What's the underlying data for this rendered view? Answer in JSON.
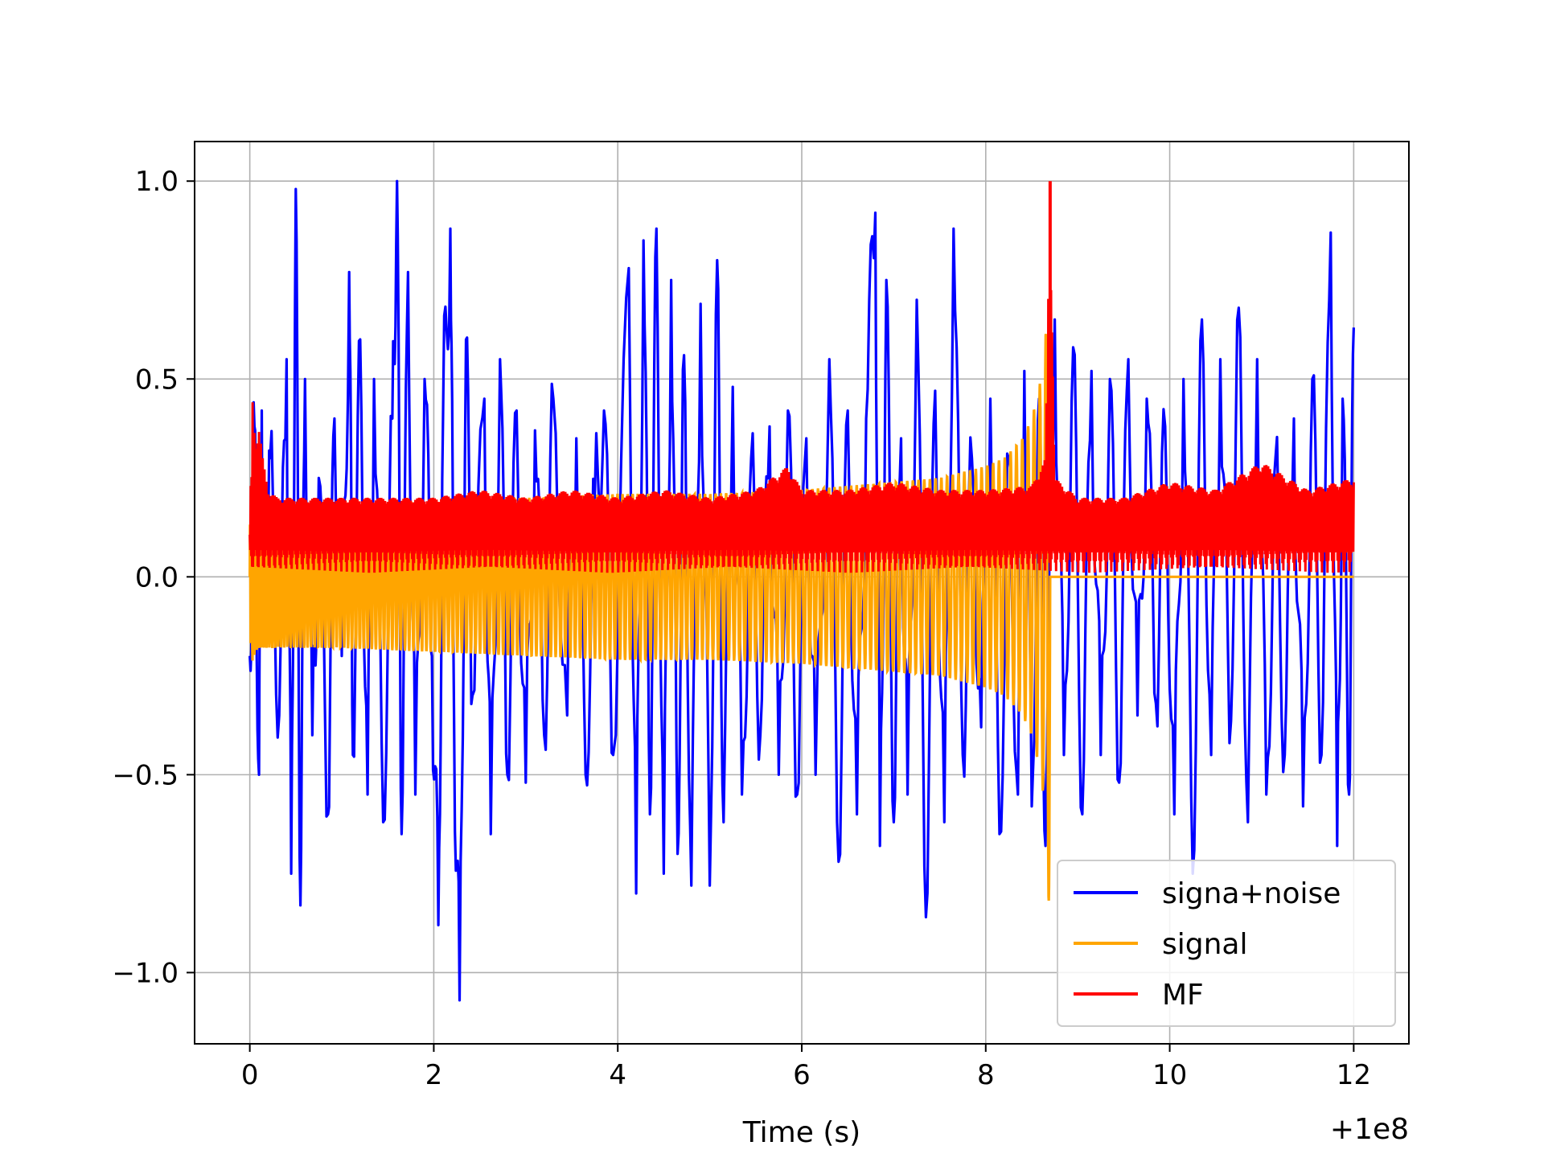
{
  "chart_data": {
    "type": "line",
    "title": "",
    "xlabel": "Time (s)",
    "ylabel": "",
    "x_offset_label": "+1e8",
    "xlim": [
      -0.6,
      12.6
    ],
    "ylim": [
      -1.18,
      1.1
    ],
    "grid": true,
    "legend_position": "lower-right",
    "x_ticks": [
      0,
      2,
      4,
      6,
      8,
      10,
      12
    ],
    "x_tick_labels": [
      "0",
      "2",
      "4",
      "6",
      "8",
      "10",
      "12"
    ],
    "y_ticks": [
      -1.0,
      -0.5,
      0.0,
      0.5,
      1.0
    ],
    "y_tick_labels": [
      "−1.0",
      "−0.5",
      "0.0",
      "0.5",
      "1.0"
    ],
    "series": [
      {
        "name": "signa+noise",
        "color": "#0000ff",
        "x": [
          0,
          0.05,
          0.1,
          0.13,
          0.16,
          0.22,
          0.32,
          0.4,
          0.45,
          0.5,
          0.55,
          0.6,
          0.68,
          0.75,
          0.85,
          0.92,
          1.0,
          1.08,
          1.12,
          1.2,
          1.28,
          1.35,
          1.45,
          1.55,
          1.6,
          1.65,
          1.72,
          1.8,
          1.9,
          1.98,
          2.05,
          2.1,
          2.18,
          2.22,
          2.28,
          2.35,
          2.42,
          2.55,
          2.62,
          2.72,
          2.8,
          2.9,
          3.0,
          3.1,
          3.2,
          3.3,
          3.45,
          3.55,
          3.65,
          3.75,
          3.85,
          3.95,
          4.12,
          4.2,
          4.28,
          4.35,
          4.42,
          4.5,
          4.58,
          4.65,
          4.72,
          4.8,
          4.9,
          5.0,
          5.08,
          5.15,
          5.25,
          5.35,
          5.45,
          5.55,
          5.65,
          5.75,
          5.85,
          5.95,
          6.05,
          6.15,
          6.3,
          6.4,
          6.5,
          6.6,
          6.7,
          6.8,
          6.85,
          6.92,
          7.0,
          7.08,
          7.15,
          7.25,
          7.35,
          7.45,
          7.55,
          7.65,
          7.75,
          7.85,
          7.95,
          8.05,
          8.15,
          8.25,
          8.35,
          8.42,
          8.5,
          8.58,
          8.65,
          8.75,
          8.85,
          8.95,
          9.05,
          9.15,
          9.25,
          9.35,
          9.45,
          9.55,
          9.65,
          9.75,
          9.85,
          9.95,
          10.05,
          10.15,
          10.25,
          10.35,
          10.45,
          10.55,
          10.65,
          10.75,
          10.85,
          10.95,
          11.05,
          11.15,
          11.25,
          11.35,
          11.45,
          11.55,
          11.65,
          11.75,
          11.82,
          11.88,
          11.95,
          12.0
        ],
        "y": [
          -0.2,
          0.38,
          -0.5,
          0.42,
          -0.15,
          0.3,
          -0.35,
          0.55,
          -0.75,
          0.98,
          -0.83,
          0.5,
          -0.4,
          0.25,
          -0.6,
          0.4,
          -0.2,
          0.77,
          -0.45,
          0.6,
          -0.55,
          0.5,
          -0.62,
          0.4,
          1.0,
          -0.65,
          0.77,
          -0.55,
          0.5,
          -0.2,
          -0.88,
          0.4,
          0.88,
          -0.35,
          -1.07,
          0.6,
          -0.3,
          0.45,
          -0.65,
          0.55,
          -0.5,
          0.42,
          -0.52,
          0.37,
          -0.4,
          0.45,
          -0.35,
          0.35,
          -0.5,
          0.2,
          0.42,
          -0.45,
          0.78,
          -0.8,
          0.85,
          -0.6,
          0.88,
          -0.75,
          0.75,
          -0.7,
          0.56,
          -0.78,
          0.69,
          -0.78,
          0.8,
          -0.62,
          0.48,
          -0.55,
          0.3,
          -0.4,
          0.38,
          -0.5,
          0.42,
          -0.55,
          0.35,
          -0.5,
          0.55,
          -0.72,
          0.42,
          -0.6,
          0.4,
          0.92,
          -0.68,
          0.75,
          -0.62,
          0.35,
          -0.55,
          0.7,
          -0.86,
          0.47,
          -0.62,
          0.88,
          -0.45,
          0.3,
          -0.38,
          0.45,
          -0.65,
          0.3,
          -0.55,
          0.52,
          -0.58,
          0.45,
          -0.68,
          0.65,
          -0.45,
          0.58,
          -0.6,
          0.52,
          -0.45,
          0.5,
          -0.52,
          0.55,
          -0.35,
          0.45,
          -0.32,
          0.38,
          -0.6,
          0.5,
          -0.75,
          0.65,
          -0.45,
          0.55,
          -0.42,
          0.68,
          -0.62,
          0.55,
          -0.55,
          0.3,
          -0.45,
          0.4,
          -0.58,
          0.5,
          -0.45,
          0.87,
          -0.68,
          0.45,
          -0.55,
          0.63
        ]
      },
      {
        "name": "signal",
        "color": "#ffa500",
        "oscillating": true,
        "cycles": 170,
        "cutoff_x": 8.7,
        "x": [
          0,
          0.02,
          0.05,
          0.1,
          0.2,
          0.5,
          1.0,
          2.0,
          3.0,
          4.0,
          5.0,
          6.0,
          7.0,
          7.5,
          8.0,
          8.2,
          8.4,
          8.5,
          8.6,
          8.65,
          8.7
        ],
        "y": [
          0.12,
          0.22,
          0.2,
          0.18,
          0.18,
          0.18,
          0.18,
          0.19,
          0.2,
          0.21,
          0.21,
          0.22,
          0.24,
          0.25,
          0.28,
          0.3,
          0.35,
          0.4,
          0.5,
          0.6,
          0.92
        ]
      },
      {
        "name": "MF",
        "color": "#ff0000",
        "baseline": 0.09,
        "x": [
          0,
          0.03,
          0.06,
          0.1,
          0.14,
          0.2,
          0.3,
          0.6,
          1.0,
          1.5,
          2.0,
          2.5,
          3.0,
          3.5,
          4.0,
          4.5,
          5.0,
          5.5,
          5.85,
          6.0,
          6.5,
          7.0,
          7.5,
          8.0,
          8.5,
          8.65,
          8.7,
          8.75,
          9.0,
          9.5,
          10.0,
          10.5,
          11.0,
          11.5,
          12.0
        ],
        "y": [
          0.12,
          0.45,
          0.35,
          0.38,
          0.3,
          0.22,
          0.2,
          0.2,
          0.2,
          0.2,
          0.2,
          0.22,
          0.2,
          0.22,
          0.2,
          0.22,
          0.2,
          0.22,
          0.28,
          0.22,
          0.22,
          0.24,
          0.22,
          0.22,
          0.23,
          0.3,
          1.0,
          0.25,
          0.2,
          0.2,
          0.24,
          0.22,
          0.29,
          0.22,
          0.25
        ]
      }
    ]
  }
}
